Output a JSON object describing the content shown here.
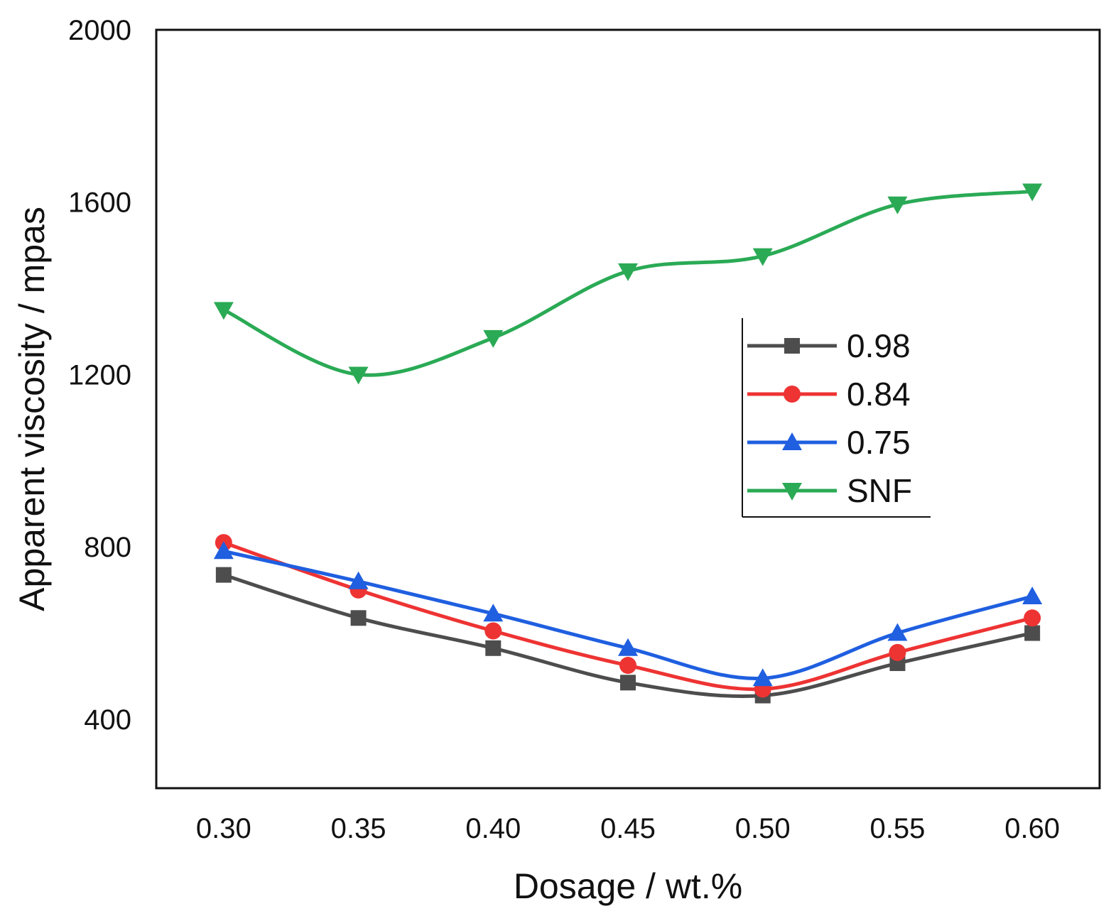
{
  "chart_data": {
    "type": "line",
    "title": "",
    "xlabel": "Dosage / wt.%",
    "ylabel": "Apparent viscosity / mpas",
    "x": [
      0.3,
      0.35,
      0.4,
      0.45,
      0.5,
      0.55,
      0.6
    ],
    "x_tick_labels": [
      "0.30",
      "0.35",
      "0.40",
      "0.45",
      "0.50",
      "0.55",
      "0.60"
    ],
    "xlim": [
      0.275,
      0.625
    ],
    "ylim": [
      240,
      2000
    ],
    "y_ticks": [
      400,
      800,
      1200,
      1600,
      2000
    ],
    "y_tick_labels": [
      "400",
      "800",
      "1200",
      "1600",
      "2000"
    ],
    "grid": false,
    "legend_position": "center-right",
    "series": [
      {
        "name": "0.98",
        "color": "#4d4d4d",
        "marker": "square",
        "values": [
          735,
          635,
          565,
          485,
          455,
          530,
          600
        ]
      },
      {
        "name": "0.84",
        "color": "#ee3333",
        "marker": "circle",
        "values": [
          810,
          700,
          605,
          525,
          470,
          555,
          635
        ]
      },
      {
        "name": "0.75",
        "color": "#1f5fe0",
        "marker": "triangle-up",
        "values": [
          790,
          720,
          645,
          565,
          495,
          600,
          685
        ]
      },
      {
        "name": "SNF",
        "color": "#2aaa55",
        "marker": "triangle-down",
        "values": [
          1350,
          1200,
          1285,
          1440,
          1475,
          1595,
          1625
        ]
      }
    ]
  }
}
